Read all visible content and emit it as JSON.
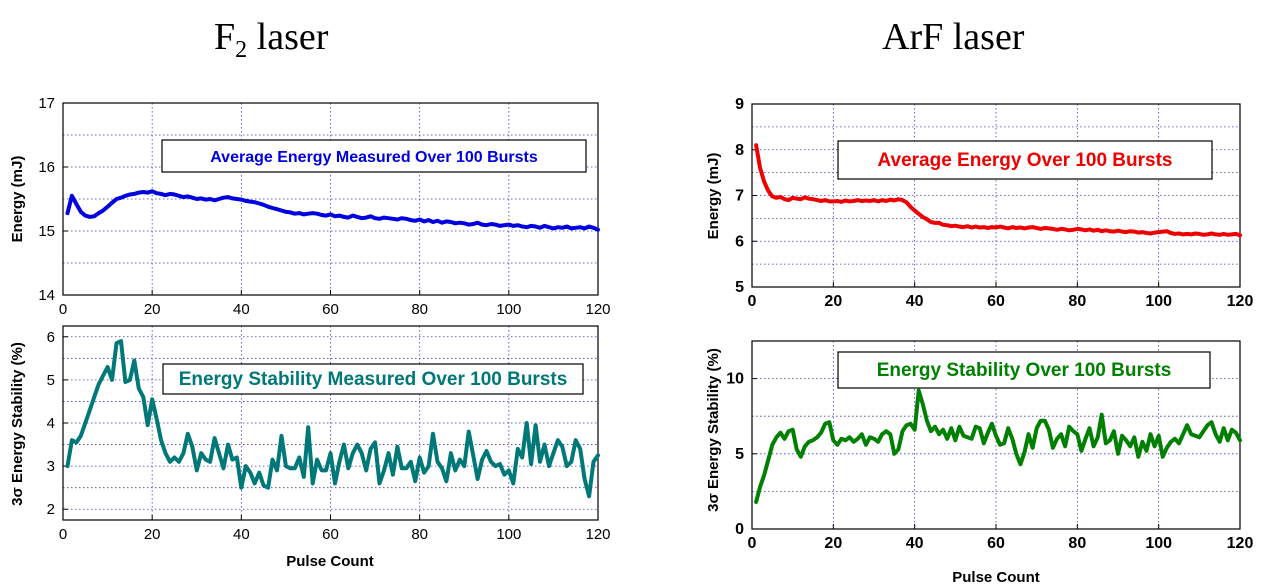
{
  "headings": {
    "left_main": "F",
    "left_sub": "2",
    "left_rest": " laser",
    "right": "ArF laser"
  },
  "chart_data": [
    {
      "id": "f2-energy",
      "type": "line",
      "annotation": "Average Energy Measured Over 100 Bursts",
      "xlabel": "",
      "ylabel": "Energy (mJ)",
      "xlim": [
        0,
        120
      ],
      "ylim": [
        14,
        17
      ],
      "xticks": [
        0,
        20,
        40,
        60,
        80,
        100,
        120
      ],
      "yticks": [
        14,
        15,
        16,
        17
      ],
      "ytick_labels": [
        "14",
        "15",
        "16",
        "17"
      ],
      "grid": true,
      "color": "#0000e0",
      "series": [
        {
          "x": [
            1,
            2,
            3,
            4,
            5,
            6,
            7,
            8,
            9,
            10,
            11,
            12,
            13,
            14,
            15,
            16,
            17,
            18,
            19,
            20,
            21,
            22,
            23,
            24,
            25,
            26,
            27,
            28,
            29,
            30,
            31,
            32,
            33,
            34,
            35,
            36,
            37,
            38,
            39,
            40,
            41,
            42,
            43,
            44,
            45,
            46,
            47,
            48,
            49,
            50,
            51,
            52,
            53,
            54,
            55,
            56,
            57,
            58,
            59,
            60,
            61,
            62,
            63,
            64,
            65,
            66,
            67,
            68,
            69,
            70,
            71,
            72,
            73,
            74,
            75,
            76,
            77,
            78,
            79,
            80,
            81,
            82,
            83,
            84,
            85,
            86,
            87,
            88,
            89,
            90,
            91,
            92,
            93,
            94,
            95,
            96,
            97,
            98,
            99,
            100,
            101,
            102,
            103,
            104,
            105,
            106,
            107,
            108,
            109,
            110,
            111,
            112,
            113,
            114,
            115,
            116,
            117,
            118,
            119,
            120
          ],
          "y": [
            15.28,
            15.55,
            15.42,
            15.3,
            15.24,
            15.22,
            15.23,
            15.28,
            15.32,
            15.38,
            15.44,
            15.5,
            15.52,
            15.55,
            15.57,
            15.58,
            15.6,
            15.61,
            15.6,
            15.62,
            15.59,
            15.58,
            15.56,
            15.58,
            15.57,
            15.55,
            15.53,
            15.54,
            15.52,
            15.5,
            15.51,
            15.49,
            15.5,
            15.48,
            15.5,
            15.52,
            15.53,
            15.51,
            15.5,
            15.49,
            15.47,
            15.46,
            15.45,
            15.43,
            15.41,
            15.38,
            15.36,
            15.34,
            15.32,
            15.3,
            15.29,
            15.27,
            15.28,
            15.26,
            15.27,
            15.28,
            15.27,
            15.25,
            15.24,
            15.26,
            15.23,
            15.24,
            15.22,
            15.21,
            15.24,
            15.22,
            15.2,
            15.21,
            15.23,
            15.2,
            15.19,
            15.21,
            15.2,
            15.19,
            15.18,
            15.2,
            15.19,
            15.17,
            15.16,
            15.18,
            15.15,
            15.17,
            15.14,
            15.16,
            15.13,
            15.15,
            15.14,
            15.12,
            15.13,
            15.12,
            15.1,
            15.11,
            15.13,
            15.1,
            15.09,
            15.11,
            15.1,
            15.08,
            15.09,
            15.1,
            15.08,
            15.09,
            15.07,
            15.06,
            15.08,
            15.07,
            15.05,
            15.08,
            15.06,
            15.04,
            15.06,
            15.05,
            15.07,
            15.04,
            15.05,
            15.06,
            15.04,
            15.07,
            15.05,
            15.02
          ]
        }
      ]
    },
    {
      "id": "f2-stability",
      "type": "line",
      "annotation": "Energy Stability Measured Over 100 Bursts",
      "xlabel": "Pulse Count",
      "ylabel": "3σ Energy Stability (%)",
      "xlim": [
        0,
        120
      ],
      "ylim": [
        1.75,
        6.25
      ],
      "xticks": [
        0,
        20,
        40,
        60,
        80,
        100,
        120
      ],
      "yticks": [
        2,
        3,
        4,
        5,
        6
      ],
      "ytick_labels": [
        "2",
        "3",
        "4",
        "5",
        "6"
      ],
      "grid": true,
      "color": "#007878",
      "series": [
        {
          "x": [
            1,
            2,
            3,
            4,
            5,
            6,
            7,
            8,
            9,
            10,
            11,
            12,
            13,
            14,
            15,
            16,
            17,
            18,
            19,
            20,
            21,
            22,
            23,
            24,
            25,
            26,
            27,
            28,
            29,
            30,
            31,
            32,
            33,
            34,
            35,
            36,
            37,
            38,
            39,
            40,
            41,
            42,
            43,
            44,
            45,
            46,
            47,
            48,
            49,
            50,
            51,
            52,
            53,
            54,
            55,
            56,
            57,
            58,
            59,
            60,
            61,
            62,
            63,
            64,
            65,
            66,
            67,
            68,
            69,
            70,
            71,
            72,
            73,
            74,
            75,
            76,
            77,
            78,
            79,
            80,
            81,
            82,
            83,
            84,
            85,
            86,
            87,
            88,
            89,
            90,
            91,
            92,
            93,
            94,
            95,
            96,
            97,
            98,
            99,
            100,
            101,
            102,
            103,
            104,
            105,
            106,
            107,
            108,
            109,
            110,
            111,
            112,
            113,
            114,
            115,
            116,
            117,
            118,
            119,
            120
          ],
          "y": [
            3.0,
            3.6,
            3.55,
            3.7,
            4.0,
            4.3,
            4.6,
            4.9,
            5.1,
            5.3,
            5.0,
            5.85,
            5.9,
            4.95,
            5.0,
            5.45,
            4.8,
            4.6,
            3.95,
            4.55,
            4.1,
            3.6,
            3.3,
            3.1,
            3.2,
            3.1,
            3.3,
            3.75,
            3.45,
            2.9,
            3.3,
            3.15,
            3.1,
            3.65,
            3.3,
            2.95,
            3.5,
            3.15,
            3.2,
            2.5,
            3.0,
            2.85,
            2.6,
            2.85,
            2.55,
            2.5,
            3.15,
            2.9,
            3.7,
            3.0,
            2.95,
            2.95,
            3.2,
            2.75,
            3.9,
            2.6,
            3.15,
            2.9,
            2.9,
            3.3,
            2.6,
            3.1,
            3.5,
            2.95,
            3.3,
            3.5,
            3.3,
            2.9,
            3.4,
            3.55,
            2.6,
            2.9,
            3.3,
            2.8,
            3.45,
            2.95,
            2.95,
            3.1,
            2.65,
            3.2,
            2.85,
            3.0,
            3.75,
            3.1,
            2.95,
            2.65,
            3.3,
            2.9,
            3.15,
            3.0,
            3.8,
            3.25,
            2.7,
            3.15,
            3.35,
            3.1,
            3.0,
            3.05,
            2.8,
            2.9,
            2.6,
            3.4,
            3.2,
            4.0,
            3.05,
            3.95,
            3.1,
            3.5,
            3.0,
            3.3,
            3.6,
            3.45,
            3.0,
            3.1,
            3.6,
            3.4,
            2.7,
            2.3,
            3.1,
            3.25
          ]
        }
      ]
    },
    {
      "id": "arf-energy",
      "type": "line",
      "annotation": "Average Energy Over 100 Bursts",
      "xlabel": "",
      "ylabel": "Energy (mJ)",
      "xlim": [
        0,
        120
      ],
      "ylim": [
        5,
        9
      ],
      "xticks": [
        0,
        20,
        40,
        60,
        80,
        100,
        120
      ],
      "xtick_labels": [
        "0",
        "20",
        "40",
        "60",
        "80",
        "100",
        "120"
      ],
      "yticks": [
        5,
        6,
        7,
        8,
        9
      ],
      "ytick_labels": [
        "5",
        "6",
        "7",
        "8",
        "9"
      ],
      "grid": true,
      "color": "#ee0000",
      "series": [
        {
          "x": [
            1,
            2,
            3,
            4,
            5,
            6,
            7,
            8,
            9,
            10,
            11,
            12,
            13,
            14,
            15,
            16,
            17,
            18,
            19,
            20,
            21,
            22,
            23,
            24,
            25,
            26,
            27,
            28,
            29,
            30,
            31,
            32,
            33,
            34,
            35,
            36,
            37,
            38,
            39,
            40,
            41,
            42,
            43,
            44,
            45,
            46,
            47,
            48,
            49,
            50,
            51,
            52,
            53,
            54,
            55,
            56,
            57,
            58,
            59,
            60,
            61,
            62,
            63,
            64,
            65,
            66,
            67,
            68,
            69,
            70,
            71,
            72,
            73,
            74,
            75,
            76,
            77,
            78,
            79,
            80,
            81,
            82,
            83,
            84,
            85,
            86,
            87,
            88,
            89,
            90,
            91,
            92,
            93,
            94,
            95,
            96,
            97,
            98,
            99,
            100,
            101,
            102,
            103,
            104,
            105,
            106,
            107,
            108,
            109,
            110,
            111,
            112,
            113,
            114,
            115,
            116,
            117,
            118,
            119,
            120
          ],
          "y": [
            8.1,
            7.6,
            7.3,
            7.1,
            6.98,
            6.95,
            6.97,
            6.92,
            6.9,
            6.95,
            6.93,
            6.92,
            6.96,
            6.93,
            6.92,
            6.9,
            6.88,
            6.9,
            6.87,
            6.87,
            6.88,
            6.86,
            6.89,
            6.87,
            6.88,
            6.9,
            6.88,
            6.89,
            6.88,
            6.9,
            6.87,
            6.9,
            6.88,
            6.91,
            6.89,
            6.92,
            6.9,
            6.85,
            6.75,
            6.67,
            6.6,
            6.53,
            6.48,
            6.42,
            6.4,
            6.4,
            6.36,
            6.35,
            6.33,
            6.34,
            6.32,
            6.31,
            6.33,
            6.3,
            6.32,
            6.3,
            6.31,
            6.29,
            6.31,
            6.3,
            6.32,
            6.3,
            6.28,
            6.31,
            6.29,
            6.3,
            6.28,
            6.3,
            6.31,
            6.29,
            6.27,
            6.29,
            6.28,
            6.27,
            6.25,
            6.27,
            6.26,
            6.24,
            6.25,
            6.27,
            6.26,
            6.24,
            6.26,
            6.23,
            6.25,
            6.22,
            6.24,
            6.22,
            6.21,
            6.23,
            6.21,
            6.2,
            6.22,
            6.21,
            6.19,
            6.2,
            6.18,
            6.17,
            6.19,
            6.2,
            6.21,
            6.22,
            6.18,
            6.16,
            6.17,
            6.15,
            6.16,
            6.15,
            6.17,
            6.16,
            6.14,
            6.15,
            6.17,
            6.15,
            6.14,
            6.16,
            6.14,
            6.15,
            6.16,
            6.13
          ]
        }
      ]
    },
    {
      "id": "arf-stability",
      "type": "line",
      "annotation": "Energy Stability Over 100 Bursts",
      "xlabel": "Pulse Count",
      "ylabel": "3σ Energy Stability (%)",
      "xlim": [
        0,
        120
      ],
      "ylim": [
        0,
        12.5
      ],
      "xticks": [
        0,
        20,
        40,
        60,
        80,
        100,
        120
      ],
      "yticks": [
        0,
        5,
        10
      ],
      "ytick_labels": [
        "0",
        "5",
        "10"
      ],
      "grid": true,
      "color": "#008000",
      "series": [
        {
          "x": [
            1,
            2,
            3,
            4,
            5,
            6,
            7,
            8,
            9,
            10,
            11,
            12,
            13,
            14,
            15,
            16,
            17,
            18,
            19,
            20,
            21,
            22,
            23,
            24,
            25,
            26,
            27,
            28,
            29,
            30,
            31,
            32,
            33,
            34,
            35,
            36,
            37,
            38,
            39,
            40,
            41,
            42,
            43,
            44,
            45,
            46,
            47,
            48,
            49,
            50,
            51,
            52,
            53,
            54,
            55,
            56,
            57,
            58,
            59,
            60,
            61,
            62,
            63,
            64,
            65,
            66,
            67,
            68,
            69,
            70,
            71,
            72,
            73,
            74,
            75,
            76,
            77,
            78,
            79,
            80,
            81,
            82,
            83,
            84,
            85,
            86,
            87,
            88,
            89,
            90,
            91,
            92,
            93,
            94,
            95,
            96,
            97,
            98,
            99,
            100,
            101,
            102,
            103,
            104,
            105,
            106,
            107,
            108,
            109,
            110,
            111,
            112,
            113,
            114,
            115,
            116,
            117,
            118,
            119,
            120
          ],
          "y": [
            1.8,
            2.8,
            3.6,
            4.6,
            5.6,
            6.1,
            6.4,
            6.0,
            6.5,
            6.6,
            5.3,
            4.8,
            5.5,
            5.8,
            5.9,
            6.1,
            6.4,
            7.0,
            7.1,
            5.9,
            5.6,
            6.0,
            5.9,
            6.1,
            5.8,
            6.0,
            6.3,
            5.6,
            6.1,
            6.0,
            5.8,
            6.3,
            6.5,
            6.3,
            5.0,
            5.3,
            6.5,
            6.9,
            7.0,
            6.6,
            9.2,
            8.3,
            7.2,
            6.5,
            6.8,
            6.3,
            6.6,
            6.0,
            6.7,
            5.9,
            6.8,
            6.2,
            6.1,
            6.0,
            6.8,
            6.7,
            5.7,
            6.4,
            7.0,
            6.2,
            5.6,
            5.7,
            6.7,
            6.0,
            5.0,
            4.3,
            5.1,
            6.3,
            5.4,
            6.7,
            7.2,
            7.2,
            6.6,
            5.4,
            6.0,
            6.3,
            5.5,
            6.8,
            6.5,
            6.3,
            5.2,
            6.0,
            6.7,
            5.5,
            6.1,
            7.6,
            5.7,
            5.9,
            6.5,
            5.0,
            6.2,
            5.9,
            5.5,
            6.1,
            4.8,
            5.8,
            5.2,
            6.3,
            5.5,
            6.2,
            4.8,
            5.4,
            5.8,
            6.0,
            5.7,
            6.3,
            6.9,
            6.3,
            6.2,
            6.1,
            6.5,
            6.9,
            7.1,
            6.3,
            5.8,
            6.7,
            5.9,
            6.6,
            6.4,
            5.9
          ]
        }
      ]
    }
  ]
}
